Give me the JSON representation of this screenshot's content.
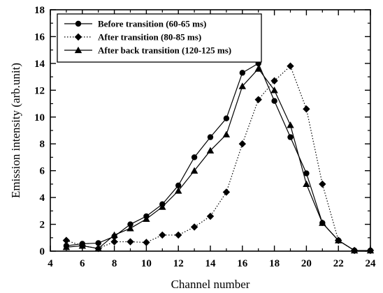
{
  "chart_data": {
    "type": "line",
    "title": "",
    "xlabel": "Channel number",
    "ylabel": "Emission intensity (arb.unit)",
    "xlim": [
      4,
      24
    ],
    "ylim": [
      0,
      18
    ],
    "xticks": [
      4,
      6,
      8,
      10,
      12,
      14,
      16,
      18,
      20,
      22,
      24
    ],
    "yticks": [
      0,
      2,
      4,
      6,
      8,
      10,
      12,
      14,
      16,
      18
    ],
    "grid": false,
    "legend_position": "top-left",
    "series": [
      {
        "name": "Before transition (60-65 ms)",
        "marker": "circle",
        "line_style": "solid",
        "color": "#000000",
        "x": [
          5,
          6,
          7,
          8,
          9,
          10,
          11,
          12,
          13,
          14,
          15,
          16,
          17,
          18,
          19,
          20,
          21,
          22,
          23,
          24
        ],
        "y": [
          0.4,
          0.55,
          0.6,
          1.1,
          2.0,
          2.6,
          3.5,
          4.9,
          7.0,
          8.5,
          9.9,
          13.3,
          14.0,
          11.2,
          8.5,
          5.8,
          2.1,
          0.8,
          0.05,
          0.05
        ]
      },
      {
        "name": "After transition (80-85 ms)",
        "marker": "diamond",
        "line_style": "dotted",
        "color": "#000000",
        "x": [
          5,
          6,
          7,
          8,
          9,
          10,
          11,
          12,
          13,
          14,
          15,
          16,
          17,
          18,
          19,
          20,
          21,
          22,
          23,
          24
        ],
        "y": [
          0.8,
          0.4,
          0.2,
          0.7,
          0.7,
          0.65,
          1.2,
          1.2,
          1.8,
          2.6,
          4.4,
          8.0,
          11.3,
          12.7,
          13.8,
          10.6,
          5.0,
          0.8,
          0.05,
          0.05
        ]
      },
      {
        "name": "After back transition (120-125 ms)",
        "marker": "triangle",
        "line_style": "solid",
        "color": "#000000",
        "x": [
          5,
          6,
          7,
          8,
          9,
          10,
          11,
          12,
          13,
          14,
          15,
          16,
          17,
          18,
          19,
          20,
          21,
          22,
          23,
          24
        ],
        "y": [
          0.3,
          0.4,
          0.2,
          1.2,
          1.7,
          2.4,
          3.3,
          4.5,
          6.0,
          7.5,
          8.7,
          12.3,
          13.6,
          12.0,
          9.4,
          5.0,
          2.1,
          0.8,
          0.05,
          0.05
        ]
      }
    ]
  }
}
